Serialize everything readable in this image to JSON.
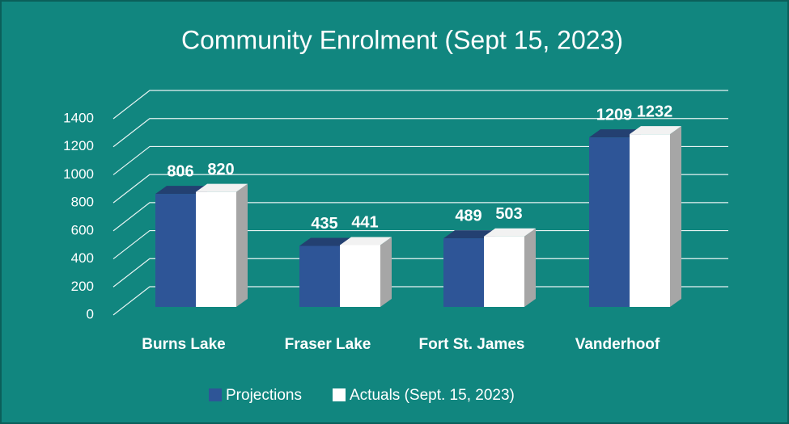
{
  "chart_data": {
    "type": "bar3d",
    "title": "Community Enrolment (Sept 15, 2023)",
    "categories": [
      "Burns Lake",
      "Fraser Lake",
      "Fort St. James",
      "Vanderhoof"
    ],
    "series": [
      {
        "name": "Projections",
        "color": "#2e5597",
        "values": [
          806,
          435,
          489,
          1209
        ]
      },
      {
        "name": "Actuals (Sept. 15, 2023)",
        "color": "#ffffff",
        "values": [
          820,
          441,
          503,
          1232
        ]
      }
    ],
    "ylim": [
      0,
      1400
    ],
    "yticks": [
      0,
      200,
      400,
      600,
      800,
      1000,
      1200,
      1400
    ],
    "grid": true,
    "legend": "bottom",
    "background": "#11867f"
  }
}
